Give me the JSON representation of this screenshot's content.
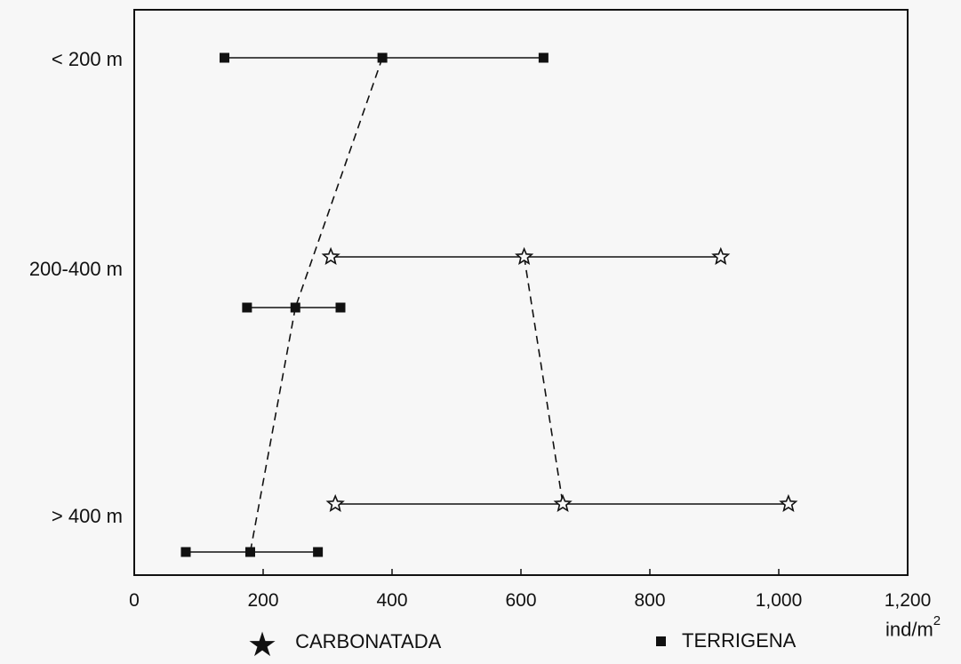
{
  "chart_data": {
    "type": "scatter",
    "xlim": [
      0,
      1200
    ],
    "x_ticks": [
      0,
      200,
      400,
      600,
      800,
      "1,000",
      "1,200"
    ],
    "x_unit": "ind/m",
    "x_unit_sup": "2",
    "categories": [
      "< 200 m",
      "200-400 m",
      "> 400 m"
    ],
    "grid": false,
    "legend_placement": "bottom",
    "series": [
      {
        "name": "CARBONATADA",
        "marker": "star",
        "ranges": [
          {
            "category": "200-400 m",
            "min": 305,
            "mean": 605,
            "max": 910
          },
          {
            "category": "> 400 m",
            "min": 312,
            "mean": 665,
            "max": 1015
          }
        ]
      },
      {
        "name": "TERRIGENA",
        "marker": "square",
        "ranges": [
          {
            "category": "< 200 m",
            "min": 140,
            "mean": 385,
            "max": 635
          },
          {
            "category": "200-400 m",
            "min": 175,
            "mean": 250,
            "max": 320
          },
          {
            "category": "> 400 m",
            "min": 80,
            "mean": 180,
            "max": 285
          }
        ]
      }
    ]
  },
  "legend": {
    "carbonatada": "CARBONATADA",
    "terrigena": "TERRIGENA"
  },
  "colors": {
    "ink": "#111111",
    "background": "#f7f7f7"
  }
}
